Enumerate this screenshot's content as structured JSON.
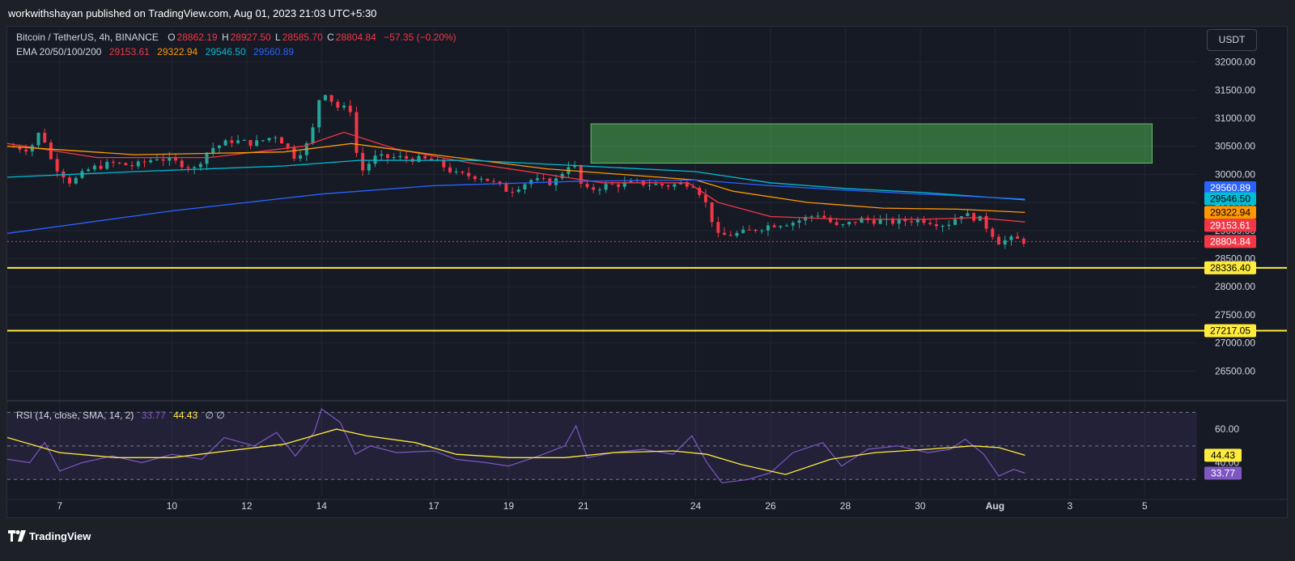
{
  "header": {
    "published_line": "workwithshayan published on TradingView.com, Aug 01, 2023 21:03 UTC+5:30"
  },
  "legend": {
    "symbol": "Bitcoin / TetherUS, 4h, BINANCE",
    "ohlc": [
      {
        "label": "O",
        "value": "28862.19"
      },
      {
        "label": "H",
        "value": "28927.50"
      },
      {
        "label": "L",
        "value": "28585.70"
      },
      {
        "label": "C",
        "value": "28804.84"
      }
    ],
    "change": "−57.35 (−0.20%)",
    "ema_label": "EMA 20/50/100/200",
    "ema_values": [
      {
        "name": "EMA 20",
        "value": "29153.61",
        "color": "#f23645"
      },
      {
        "name": "EMA 50",
        "value": "29322.94",
        "color": "#ff9800"
      },
      {
        "name": "EMA 100",
        "value": "29546.50",
        "color": "#00bcd4"
      },
      {
        "name": "EMA 200",
        "value": "29560.89",
        "color": "#2962ff"
      }
    ],
    "rsi_label": "RSI (14, close, SMA, 14, 2)",
    "rsi_value": "33.77",
    "rsi_sma_value": "44.43",
    "rsi_extra": "∅ ∅"
  },
  "currency_button": "USDT",
  "footer": {
    "logo_text": "TradingView"
  },
  "colors": {
    "up": "#26a69a",
    "down": "#f23645",
    "ema20": "#f23645",
    "ema50": "#ff9800",
    "ema100": "#00bcd4",
    "ema200": "#2962ff",
    "support": "#ffeb3b",
    "zone": "#4caf50",
    "rsi": "#7e57c2",
    "rsi_sma": "#ffeb3b"
  },
  "chart_data": {
    "type": "candlestick",
    "pair": "BTC/USDT",
    "timeframe": "4h",
    "ylim": [
      26000,
      32600
    ],
    "y_ticks": [
      26500,
      27000,
      27500,
      28000,
      28500,
      29000,
      29500,
      30000,
      30500,
      31000,
      31500,
      32000
    ],
    "y_tick_labels": [
      "26500.00",
      "27000.00",
      "27500.00",
      "28000.00",
      "28500.00",
      "29000.00",
      "29500.00",
      "30000.00",
      "30500.00",
      "31000.00",
      "31500.00",
      "32000.00"
    ],
    "x_ticks": [
      {
        "label": "7",
        "day": 7
      },
      {
        "label": "10",
        "day": 10
      },
      {
        "label": "12",
        "day": 12
      },
      {
        "label": "14",
        "day": 14
      },
      {
        "label": "17",
        "day": 17
      },
      {
        "label": "19",
        "day": 19
      },
      {
        "label": "21",
        "day": 21
      },
      {
        "label": "24",
        "day": 24
      },
      {
        "label": "26",
        "day": 26
      },
      {
        "label": "28",
        "day": 28
      },
      {
        "label": "30",
        "day": 30
      },
      {
        "label": "Aug",
        "day": 32
      },
      {
        "label": "3",
        "day": 34
      },
      {
        "label": "5",
        "day": 36
      }
    ],
    "xlim_days": [
      5.6,
      37.4
    ],
    "price_path": [
      {
        "d": 5.6,
        "p": 30500
      },
      {
        "d": 6.2,
        "p": 30450
      },
      {
        "d": 6.5,
        "p": 30800
      },
      {
        "d": 6.8,
        "p": 30200
      },
      {
        "d": 7.3,
        "p": 29850
      },
      {
        "d": 7.8,
        "p": 30100
      },
      {
        "d": 8.4,
        "p": 30200
      },
      {
        "d": 9.0,
        "p": 30150
      },
      {
        "d": 9.6,
        "p": 30300
      },
      {
        "d": 10.2,
        "p": 30200
      },
      {
        "d": 10.6,
        "p": 30100
      },
      {
        "d": 11.0,
        "p": 30450
      },
      {
        "d": 11.6,
        "p": 30600
      },
      {
        "d": 12.2,
        "p": 30550
      },
      {
        "d": 12.8,
        "p": 30700
      },
      {
        "d": 13.3,
        "p": 30300
      },
      {
        "d": 13.7,
        "p": 30600
      },
      {
        "d": 14.0,
        "p": 31550
      },
      {
        "d": 14.4,
        "p": 31200
      },
      {
        "d": 14.8,
        "p": 31150
      },
      {
        "d": 15.0,
        "p": 30000
      },
      {
        "d": 15.4,
        "p": 30300
      },
      {
        "d": 16.0,
        "p": 30300
      },
      {
        "d": 17.0,
        "p": 30250
      },
      {
        "d": 17.6,
        "p": 30000
      },
      {
        "d": 18.3,
        "p": 29950
      },
      {
        "d": 19.0,
        "p": 29700
      },
      {
        "d": 19.6,
        "p": 29900
      },
      {
        "d": 20.2,
        "p": 29850
      },
      {
        "d": 20.7,
        "p": 30250
      },
      {
        "d": 21.0,
        "p": 29700
      },
      {
        "d": 21.6,
        "p": 29800
      },
      {
        "d": 22.4,
        "p": 29850
      },
      {
        "d": 23.2,
        "p": 29800
      },
      {
        "d": 23.9,
        "p": 29850
      },
      {
        "d": 24.2,
        "p": 29600
      },
      {
        "d": 24.6,
        "p": 28900
      },
      {
        "d": 25.2,
        "p": 28950
      },
      {
        "d": 26.0,
        "p": 29100
      },
      {
        "d": 26.6,
        "p": 29150
      },
      {
        "d": 27.3,
        "p": 29300
      },
      {
        "d": 27.8,
        "p": 29050
      },
      {
        "d": 28.4,
        "p": 29200
      },
      {
        "d": 29.2,
        "p": 29150
      },
      {
        "d": 30.0,
        "p": 29200
      },
      {
        "d": 30.7,
        "p": 29100
      },
      {
        "d": 31.1,
        "p": 29300
      },
      {
        "d": 31.6,
        "p": 29200
      },
      {
        "d": 32.1,
        "p": 28800
      },
      {
        "d": 32.5,
        "p": 28850
      },
      {
        "d": 32.8,
        "p": 28805
      }
    ],
    "last_candle_day": 32.8,
    "ema_series": [
      {
        "name": "EMA 20",
        "last_value": 29153.61,
        "points": [
          {
            "d": 5.6,
            "p": 30550
          },
          {
            "d": 8,
            "p": 30300
          },
          {
            "d": 11,
            "p": 30300
          },
          {
            "d": 13.5,
            "p": 30500
          },
          {
            "d": 14.6,
            "p": 30750
          },
          {
            "d": 16,
            "p": 30450
          },
          {
            "d": 18,
            "p": 30200
          },
          {
            "d": 20,
            "p": 30000
          },
          {
            "d": 21.5,
            "p": 29850
          },
          {
            "d": 23.8,
            "p": 29850
          },
          {
            "d": 24.6,
            "p": 29500
          },
          {
            "d": 26,
            "p": 29250
          },
          {
            "d": 28,
            "p": 29200
          },
          {
            "d": 30,
            "p": 29200
          },
          {
            "d": 31.5,
            "p": 29230
          },
          {
            "d": 32.8,
            "p": 29153.61
          }
        ]
      },
      {
        "name": "EMA 50",
        "last_value": 29322.94,
        "points": [
          {
            "d": 5.6,
            "p": 30500
          },
          {
            "d": 9,
            "p": 30350
          },
          {
            "d": 13,
            "p": 30400
          },
          {
            "d": 14.8,
            "p": 30550
          },
          {
            "d": 17,
            "p": 30350
          },
          {
            "d": 20,
            "p": 30100
          },
          {
            "d": 22,
            "p": 30000
          },
          {
            "d": 24,
            "p": 29900
          },
          {
            "d": 25,
            "p": 29700
          },
          {
            "d": 27,
            "p": 29500
          },
          {
            "d": 29,
            "p": 29400
          },
          {
            "d": 31,
            "p": 29380
          },
          {
            "d": 32.8,
            "p": 29322.94
          }
        ]
      },
      {
        "name": "EMA 100",
        "last_value": 29546.5,
        "points": [
          {
            "d": 5.6,
            "p": 29950
          },
          {
            "d": 9,
            "p": 30050
          },
          {
            "d": 13,
            "p": 30150
          },
          {
            "d": 15,
            "p": 30250
          },
          {
            "d": 18,
            "p": 30250
          },
          {
            "d": 21,
            "p": 30150
          },
          {
            "d": 24,
            "p": 30050
          },
          {
            "d": 26,
            "p": 29850
          },
          {
            "d": 28,
            "p": 29750
          },
          {
            "d": 30,
            "p": 29680
          },
          {
            "d": 32.8,
            "p": 29546.5
          }
        ]
      },
      {
        "name": "EMA 200",
        "last_value": 29560.89,
        "points": [
          {
            "d": 5.6,
            "p": 28950
          },
          {
            "d": 10,
            "p": 29350
          },
          {
            "d": 14,
            "p": 29650
          },
          {
            "d": 17,
            "p": 29800
          },
          {
            "d": 21,
            "p": 29880
          },
          {
            "d": 24,
            "p": 29900
          },
          {
            "d": 26,
            "p": 29800
          },
          {
            "d": 28,
            "p": 29720
          },
          {
            "d": 30,
            "p": 29650
          },
          {
            "d": 32.8,
            "p": 29560.89
          }
        ]
      }
    ],
    "supply_zone": {
      "from_day": 21.2,
      "to_day": 36.2,
      "low": 30200,
      "high": 30900
    },
    "support_levels": [
      28336.4,
      27217.05
    ],
    "support_labels": [
      "28336.40",
      "27217.05"
    ],
    "current_price": 28804.84,
    "current_price_label": "28804.84",
    "ema_labels": [
      "29560.89",
      "29546.50",
      "29322.94",
      "29153.61"
    ],
    "rsi": {
      "ylim": [
        20,
        75
      ],
      "y_ticks": [
        40,
        60
      ],
      "y_tick_labels": [
        "40.00",
        "60.00"
      ],
      "band": [
        30,
        70
      ],
      "rsi_points": [
        {
          "d": 5.6,
          "r": 42
        },
        {
          "d": 6.2,
          "r": 40
        },
        {
          "d": 6.6,
          "r": 52
        },
        {
          "d": 7.0,
          "r": 35
        },
        {
          "d": 7.6,
          "r": 40
        },
        {
          "d": 8.4,
          "r": 44
        },
        {
          "d": 9.2,
          "r": 40
        },
        {
          "d": 10.0,
          "r": 45
        },
        {
          "d": 10.8,
          "r": 42
        },
        {
          "d": 11.4,
          "r": 55
        },
        {
          "d": 12.2,
          "r": 50
        },
        {
          "d": 12.8,
          "r": 58
        },
        {
          "d": 13.3,
          "r": 44
        },
        {
          "d": 13.8,
          "r": 58
        },
        {
          "d": 14.0,
          "r": 72
        },
        {
          "d": 14.5,
          "r": 64
        },
        {
          "d": 14.9,
          "r": 45
        },
        {
          "d": 15.3,
          "r": 50
        },
        {
          "d": 16.0,
          "r": 46
        },
        {
          "d": 17.0,
          "r": 47
        },
        {
          "d": 17.6,
          "r": 42
        },
        {
          "d": 18.4,
          "r": 40
        },
        {
          "d": 19.0,
          "r": 38
        },
        {
          "d": 19.8,
          "r": 44
        },
        {
          "d": 20.5,
          "r": 50
        },
        {
          "d": 20.8,
          "r": 62
        },
        {
          "d": 21.1,
          "r": 43
        },
        {
          "d": 21.8,
          "r": 46
        },
        {
          "d": 22.6,
          "r": 48
        },
        {
          "d": 23.4,
          "r": 45
        },
        {
          "d": 23.9,
          "r": 56
        },
        {
          "d": 24.3,
          "r": 40
        },
        {
          "d": 24.7,
          "r": 28
        },
        {
          "d": 25.4,
          "r": 30
        },
        {
          "d": 26.0,
          "r": 34
        },
        {
          "d": 26.6,
          "r": 46
        },
        {
          "d": 27.4,
          "r": 52
        },
        {
          "d": 27.9,
          "r": 38
        },
        {
          "d": 28.6,
          "r": 48
        },
        {
          "d": 29.4,
          "r": 50
        },
        {
          "d": 30.2,
          "r": 46
        },
        {
          "d": 30.8,
          "r": 48
        },
        {
          "d": 31.2,
          "r": 54
        },
        {
          "d": 31.7,
          "r": 45
        },
        {
          "d": 32.1,
          "r": 32
        },
        {
          "d": 32.5,
          "r": 36
        },
        {
          "d": 32.8,
          "r": 33.77
        }
      ],
      "sma_points": [
        {
          "d": 5.6,
          "r": 55
        },
        {
          "d": 7.0,
          "r": 46
        },
        {
          "d": 8.5,
          "r": 43
        },
        {
          "d": 10.0,
          "r": 43
        },
        {
          "d": 11.5,
          "r": 47
        },
        {
          "d": 13.0,
          "r": 51
        },
        {
          "d": 14.4,
          "r": 60
        },
        {
          "d": 15.2,
          "r": 56
        },
        {
          "d": 16.5,
          "r": 52
        },
        {
          "d": 17.6,
          "r": 45
        },
        {
          "d": 19.0,
          "r": 43
        },
        {
          "d": 20.5,
          "r": 43
        },
        {
          "d": 21.8,
          "r": 46
        },
        {
          "d": 23.4,
          "r": 47
        },
        {
          "d": 24.3,
          "r": 45
        },
        {
          "d": 25.2,
          "r": 39
        },
        {
          "d": 26.4,
          "r": 33
        },
        {
          "d": 27.6,
          "r": 42
        },
        {
          "d": 28.8,
          "r": 46
        },
        {
          "d": 30.2,
          "r": 48
        },
        {
          "d": 31.4,
          "r": 50
        },
        {
          "d": 32.1,
          "r": 49
        },
        {
          "d": 32.8,
          "r": 44.43
        }
      ]
    }
  }
}
